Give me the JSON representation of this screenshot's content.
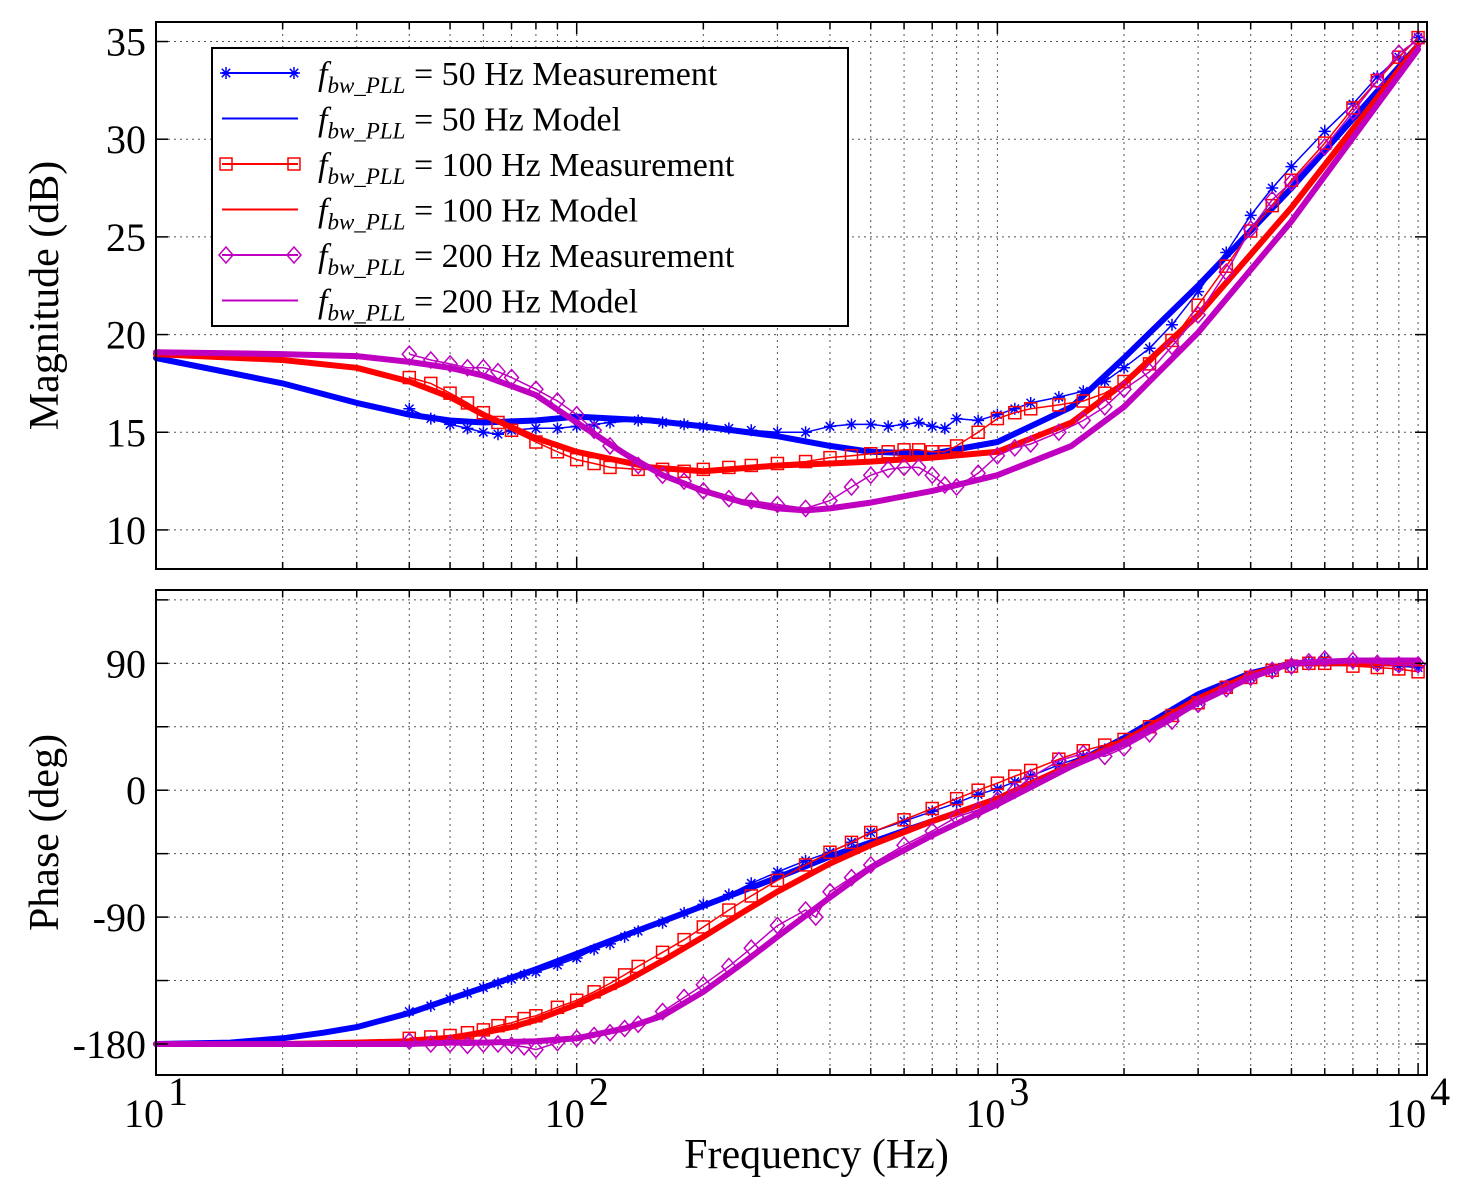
{
  "chart_data": [
    {
      "type": "line",
      "panel": "magnitude",
      "xlabel": "",
      "ylabel": "Magnitude (dB)",
      "xscale": "log",
      "xlim": [
        10,
        10500
      ],
      "ylim": [
        8,
        36
      ],
      "yticks": [
        10,
        15,
        20,
        25,
        30,
        35
      ],
      "ytick_labels": [
        "10",
        "15",
        "20",
        "25",
        "30",
        "35"
      ],
      "grid": true,
      "legend_position": "top-left",
      "legend": [
        {
          "f": "f",
          "sub": "bw_PLL",
          "rest": " = 50 Hz Measurement",
          "color": "#0000ff",
          "marker": "star",
          "thick": false
        },
        {
          "f": "f",
          "sub": "bw_PLL",
          "rest": " = 50 Hz Model",
          "color": "#0000ff",
          "marker": "none",
          "thick": false
        },
        {
          "f": "f",
          "sub": "bw_PLL",
          "rest": " = 100 Hz Measurement",
          "color": "#ff0000",
          "marker": "square",
          "thick": false
        },
        {
          "f": "f",
          "sub": "bw_PLL",
          "rest": " = 100 Hz Model",
          "color": "#ff0000",
          "marker": "none",
          "thick": false
        },
        {
          "f": "f",
          "sub": "bw_PLL",
          "rest": " = 200 Hz Measurement",
          "color": "#c000c0",
          "marker": "diamond",
          "thick": false
        },
        {
          "f": "f",
          "sub": "bw_PLL",
          "rest": " = 200 Hz Model",
          "color": "#c000c0",
          "marker": "none",
          "thick": false
        }
      ],
      "series": [
        {
          "name": "f_bw_PLL = 50 Hz Model",
          "color": "#0000ff",
          "marker": "none",
          "x": [
            10,
            20,
            30,
            40,
            50,
            60,
            80,
            100,
            150,
            200,
            300,
            400,
            500,
            700,
            1000,
            1500,
            2000,
            3000,
            5000,
            10000
          ],
          "y": [
            18.8,
            17.5,
            16.5,
            15.9,
            15.6,
            15.5,
            15.6,
            15.8,
            15.6,
            15.3,
            14.8,
            14.3,
            14.0,
            13.9,
            14.5,
            16.3,
            18.8,
            22.5,
            27.5,
            34.8
          ]
        },
        {
          "name": "f_bw_PLL = 50 Hz Measurement",
          "color": "#0000ff",
          "marker": "star",
          "x": [
            40,
            45,
            50,
            55,
            60,
            65,
            70,
            80,
            90,
            100,
            110,
            120,
            140,
            160,
            180,
            200,
            230,
            260,
            300,
            350,
            400,
            450,
            500,
            550,
            600,
            650,
            700,
            750,
            800,
            900,
            1000,
            1100,
            1200,
            1400,
            1600,
            1800,
            2000,
            2300,
            2600,
            3000,
            3500,
            4000,
            4500,
            5000,
            6000,
            7000,
            8000,
            9000,
            10000
          ],
          "y": [
            16.2,
            15.7,
            15.4,
            15.2,
            15.0,
            14.9,
            15.1,
            15.2,
            15.2,
            15.3,
            15.4,
            15.5,
            15.6,
            15.5,
            15.4,
            15.3,
            15.2,
            15.1,
            15.0,
            15.0,
            15.3,
            15.4,
            15.4,
            15.3,
            15.4,
            15.5,
            15.3,
            15.2,
            15.7,
            15.6,
            15.9,
            16.2,
            16.5,
            16.8,
            17.1,
            17.6,
            18.3,
            19.3,
            20.5,
            22.2,
            24.2,
            26.1,
            27.5,
            28.6,
            30.4,
            31.8,
            33.2,
            34.2,
            35.2
          ]
        },
        {
          "name": "f_bw_PLL = 100 Hz Model",
          "color": "#ff0000",
          "marker": "none",
          "x": [
            10,
            20,
            30,
            40,
            50,
            60,
            80,
            100,
            150,
            200,
            300,
            400,
            500,
            700,
            1000,
            1500,
            2000,
            3000,
            5000,
            10000
          ],
          "y": [
            19.0,
            18.7,
            18.3,
            17.6,
            16.8,
            15.9,
            14.7,
            14.0,
            13.2,
            13.0,
            13.3,
            13.4,
            13.5,
            13.7,
            14.0,
            15.5,
            17.5,
            21.0,
            26.5,
            34.8
          ]
        },
        {
          "name": "f_bw_PLL = 100 Hz Measurement",
          "color": "#ff0000",
          "marker": "square",
          "x": [
            40,
            45,
            50,
            55,
            60,
            65,
            70,
            80,
            90,
            100,
            110,
            120,
            140,
            160,
            180,
            200,
            230,
            260,
            300,
            350,
            400,
            450,
            500,
            550,
            600,
            650,
            700,
            750,
            800,
            900,
            1000,
            1100,
            1200,
            1400,
            1600,
            1800,
            2000,
            2300,
            2600,
            3000,
            3500,
            4000,
            4500,
            5000,
            6000,
            7000,
            8000,
            9000,
            10000
          ],
          "y": [
            17.8,
            17.5,
            17.0,
            16.5,
            16.0,
            15.5,
            15.1,
            14.5,
            14.0,
            13.6,
            13.4,
            13.2,
            13.1,
            13.1,
            13.0,
            13.1,
            13.2,
            13.3,
            13.4,
            13.5,
            13.7,
            13.8,
            13.9,
            14.0,
            14.1,
            14.1,
            14.0,
            14.0,
            14.3,
            15.0,
            15.7,
            16.0,
            16.2,
            16.4,
            16.6,
            17.0,
            17.6,
            18.5,
            19.7,
            21.5,
            23.5,
            25.3,
            26.6,
            27.9,
            29.8,
            31.6,
            33.0,
            34.2,
            35.2
          ]
        },
        {
          "name": "f_bw_PLL = 200 Hz Model",
          "color": "#c000c0",
          "marker": "none",
          "x": [
            10,
            20,
            30,
            40,
            50,
            60,
            80,
            100,
            130,
            160,
            200,
            250,
            300,
            350,
            400,
            500,
            700,
            1000,
            1500,
            2000,
            3000,
            5000,
            10000
          ],
          "y": [
            19.1,
            19.0,
            18.9,
            18.6,
            18.3,
            17.9,
            16.9,
            15.5,
            13.9,
            12.8,
            12.0,
            11.4,
            11.1,
            11.0,
            11.1,
            11.4,
            12.0,
            12.8,
            14.3,
            16.3,
            20.1,
            25.8,
            34.6
          ]
        },
        {
          "name": "f_bw_PLL = 200 Hz Measurement",
          "color": "#c000c0",
          "marker": "diamond",
          "x": [
            40,
            45,
            50,
            55,
            60,
            65,
            70,
            80,
            90,
            100,
            110,
            120,
            140,
            160,
            180,
            200,
            230,
            260,
            300,
            350,
            400,
            450,
            500,
            550,
            600,
            650,
            700,
            750,
            800,
            900,
            1000,
            1100,
            1200,
            1400,
            1600,
            1800,
            2000,
            2300,
            2600,
            3000,
            3500,
            4000,
            4500,
            5000,
            6000,
            7000,
            8000,
            9000,
            10000
          ],
          "y": [
            19.0,
            18.7,
            18.5,
            18.3,
            18.3,
            18.1,
            17.8,
            17.2,
            16.6,
            15.9,
            15.1,
            14.3,
            13.3,
            12.8,
            12.5,
            12.0,
            11.6,
            11.5,
            11.3,
            11.1,
            11.5,
            12.2,
            12.8,
            13.1,
            13.2,
            13.2,
            12.8,
            12.3,
            12.2,
            12.9,
            13.8,
            14.2,
            14.4,
            15.0,
            15.6,
            16.3,
            17.2,
            18.1,
            19.4,
            21.0,
            23.2,
            25.4,
            26.9,
            27.8,
            29.6,
            31.4,
            33.0,
            34.4,
            35.1
          ]
        }
      ]
    },
    {
      "type": "line",
      "panel": "phase",
      "xlabel": "Frequency  (Hz)",
      "ylabel": "Phase (deg)",
      "xscale": "log",
      "xlim": [
        10,
        10500
      ],
      "ylim": [
        -202,
        142
      ],
      "yticks": [
        -180,
        -90,
        0,
        90
      ],
      "ytick_labels": [
        "-180",
        "-90",
        "0",
        "90"
      ],
      "xticks": [
        10,
        100,
        1000,
        10000
      ],
      "xtick_bases": [
        "10",
        "10",
        "10",
        "10"
      ],
      "xtick_exps": [
        "1",
        "2",
        "3",
        "4"
      ],
      "grid": true,
      "series": [
        {
          "name": "f_bw_PLL = 50 Hz Model",
          "color": "#0000ff",
          "marker": "none",
          "x": [
            10,
            15,
            20,
            25,
            30,
            40,
            50,
            60,
            70,
            80,
            100,
            130,
            160,
            200,
            250,
            300,
            400,
            500,
            700,
            1000,
            1500,
            2000,
            3000,
            4000,
            5000,
            7000,
            10000
          ],
          "y": [
            -180,
            -179,
            -176,
            -172,
            -168,
            -158,
            -148,
            -140,
            -133,
            -127,
            -116,
            -103,
            -93,
            -82,
            -71,
            -62,
            -47,
            -37,
            -22,
            -6,
            18,
            37,
            68,
            83,
            90,
            90,
            90
          ]
        },
        {
          "name": "f_bw_PLL = 50 Hz Measurement",
          "color": "#0000ff",
          "marker": "star",
          "x": [
            40,
            45,
            50,
            55,
            60,
            65,
            70,
            75,
            80,
            90,
            100,
            110,
            120,
            130,
            140,
            160,
            180,
            200,
            230,
            260,
            300,
            350,
            400,
            450,
            500,
            600,
            700,
            800,
            900,
            1000,
            1100,
            1200,
            1400,
            1600,
            1800,
            2000,
            2300,
            2600,
            3000,
            3500,
            4000,
            4500,
            5000,
            5500,
            6000,
            7000,
            8000,
            9000,
            10000
          ],
          "y": [
            -157,
            -153,
            -148,
            -144,
            -140,
            -137,
            -134,
            -131,
            -129,
            -124,
            -119,
            -113,
            -109,
            -104,
            -100,
            -94,
            -87,
            -81,
            -74,
            -66,
            -58,
            -50,
            -44,
            -37,
            -30,
            -22,
            -15,
            -9,
            -3,
            1,
            6,
            10,
            18,
            24,
            29,
            35,
            45,
            54,
            63,
            73,
            80,
            85,
            89,
            91,
            93,
            91,
            89,
            88,
            87
          ]
        },
        {
          "name": "f_bw_PLL = 100 Hz Model",
          "color": "#ff0000",
          "marker": "none",
          "x": [
            10,
            20,
            30,
            40,
            50,
            60,
            70,
            80,
            100,
            130,
            160,
            200,
            250,
            300,
            400,
            500,
            700,
            1000,
            1500,
            2000,
            3000,
            4000,
            5000,
            7000,
            10000
          ],
          "y": [
            -180,
            -180,
            -179,
            -178,
            -176,
            -172,
            -168,
            -163,
            -152,
            -136,
            -121,
            -104,
            -86,
            -72,
            -52,
            -39,
            -22,
            -6,
            18,
            35,
            65,
            82,
            90,
            90,
            90
          ]
        },
        {
          "name": "f_bw_PLL = 100 Hz Measurement",
          "color": "#ff0000",
          "marker": "square",
          "x": [
            40,
            45,
            50,
            55,
            60,
            65,
            70,
            75,
            80,
            90,
            100,
            110,
            120,
            130,
            140,
            160,
            180,
            200,
            230,
            260,
            300,
            350,
            400,
            450,
            500,
            600,
            700,
            800,
            900,
            1000,
            1100,
            1200,
            1400,
            1600,
            1800,
            2000,
            2300,
            2600,
            3000,
            3500,
            4000,
            4500,
            5000,
            5500,
            6000,
            7000,
            8000,
            9000,
            10000
          ],
          "y": [
            -176,
            -175,
            -174,
            -172,
            -170,
            -167,
            -165,
            -162,
            -160,
            -154,
            -149,
            -143,
            -137,
            -131,
            -125,
            -115,
            -106,
            -97,
            -85,
            -75,
            -64,
            -53,
            -44,
            -37,
            -30,
            -21,
            -13,
            -6,
            0,
            5,
            10,
            14,
            22,
            28,
            32,
            36,
            45,
            53,
            62,
            73,
            80,
            85,
            88,
            90,
            90,
            88,
            87,
            86,
            84
          ]
        },
        {
          "name": "f_bw_PLL = 200 Hz Model",
          "color": "#c000c0",
          "marker": "none",
          "x": [
            10,
            20,
            30,
            40,
            50,
            60,
            80,
            100,
            130,
            160,
            200,
            250,
            300,
            350,
            400,
            500,
            700,
            1000,
            1500,
            2000,
            3000,
            4000,
            5000,
            7000,
            10000
          ],
          "y": [
            -180,
            -180,
            -180,
            -180,
            -179,
            -179,
            -178,
            -176,
            -169,
            -160,
            -143,
            -122,
            -104,
            -89,
            -76,
            -55,
            -32,
            -10,
            17,
            33,
            62,
            80,
            90,
            92,
            92
          ]
        },
        {
          "name": "f_bw_PLL = 200 Hz Measurement",
          "color": "#c000c0",
          "marker": "diamond",
          "x": [
            40,
            45,
            50,
            55,
            60,
            65,
            70,
            75,
            80,
            90,
            100,
            110,
            120,
            130,
            140,
            160,
            180,
            200,
            230,
            260,
            300,
            350,
            370,
            400,
            450,
            500,
            600,
            700,
            800,
            900,
            1000,
            1100,
            1200,
            1400,
            1600,
            1800,
            2000,
            2300,
            2600,
            3000,
            3500,
            4000,
            4500,
            5000,
            5500,
            6000,
            7000,
            8000,
            9000,
            10000
          ],
          "y": [
            -178,
            -180,
            -180,
            -181,
            -180,
            -180,
            -181,
            -182,
            -184,
            -179,
            -176,
            -174,
            -172,
            -169,
            -166,
            -157,
            -147,
            -138,
            -125,
            -112,
            -96,
            -85,
            -90,
            -72,
            -62,
            -53,
            -39,
            -29,
            -19,
            -14,
            -7,
            0,
            9,
            21,
            26,
            24,
            30,
            40,
            49,
            61,
            72,
            80,
            85,
            88,
            91,
            93,
            92,
            90,
            89,
            89
          ]
        }
      ]
    }
  ]
}
